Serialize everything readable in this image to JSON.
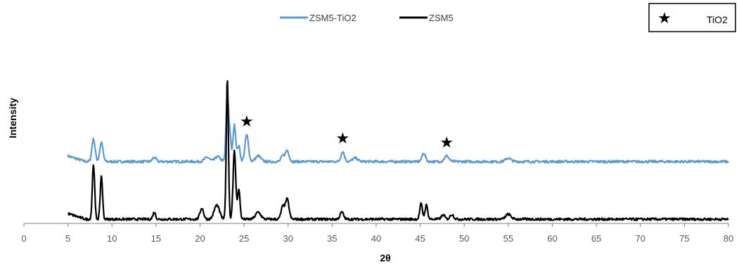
{
  "chart_data": {
    "type": "line",
    "xlabel": "2θ",
    "ylabel": "Intensity",
    "xlim": [
      0,
      80
    ],
    "x_ticks": [
      "0",
      "5",
      "10",
      "15",
      "20",
      "25",
      "30",
      "35",
      "40",
      "45",
      "50",
      "55",
      "60",
      "65",
      "70",
      "75",
      "80"
    ],
    "y_ticks_shown": false,
    "grid": false,
    "legend": {
      "placement": "top-center",
      "entries": [
        "ZSM5-TiO2",
        "ZSM5"
      ]
    },
    "marker_key": {
      "symbol": "★",
      "label": "TiO2",
      "placement": "top-right"
    },
    "colors": {
      "ZSM5-TiO2": "#5B9BD5",
      "ZSM5": "#000000"
    },
    "series": [
      {
        "name": "ZSM5-TiO2",
        "baseline": 0.82,
        "peaks": [
          [
            7.9,
            0.32,
            0.18
          ],
          [
            8.8,
            0.27,
            0.18
          ],
          [
            14.8,
            0.06,
            0.2
          ],
          [
            20.8,
            0.06,
            0.3
          ],
          [
            22.0,
            0.07,
            0.3
          ],
          [
            23.1,
            0.98,
            0.14
          ],
          [
            23.4,
            0.35,
            0.12
          ],
          [
            23.9,
            0.52,
            0.16
          ],
          [
            24.4,
            0.22,
            0.15
          ],
          [
            25.3,
            0.38,
            0.2
          ],
          [
            26.6,
            0.08,
            0.3
          ],
          [
            29.4,
            0.08,
            0.2
          ],
          [
            29.9,
            0.16,
            0.2
          ],
          [
            36.2,
            0.14,
            0.2
          ],
          [
            37.6,
            0.05,
            0.3
          ],
          [
            45.4,
            0.12,
            0.2
          ],
          [
            48.0,
            0.08,
            0.25
          ],
          [
            55.0,
            0.05,
            0.3
          ]
        ]
      },
      {
        "name": "ZSM5",
        "baseline": 0.0,
        "peaks": [
          [
            7.9,
            0.79,
            0.13
          ],
          [
            8.8,
            0.62,
            0.13
          ],
          [
            14.8,
            0.1,
            0.15
          ],
          [
            20.2,
            0.16,
            0.2
          ],
          [
            21.9,
            0.2,
            0.3
          ],
          [
            23.1,
            2.0,
            0.12
          ],
          [
            23.9,
            0.97,
            0.15
          ],
          [
            24.4,
            0.42,
            0.14
          ],
          [
            26.6,
            0.1,
            0.3
          ],
          [
            29.4,
            0.18,
            0.2
          ],
          [
            29.9,
            0.28,
            0.2
          ],
          [
            36.1,
            0.1,
            0.2
          ],
          [
            45.1,
            0.22,
            0.15
          ],
          [
            45.7,
            0.2,
            0.15
          ],
          [
            47.6,
            0.06,
            0.2
          ],
          [
            48.6,
            0.07,
            0.2
          ],
          [
            55.0,
            0.07,
            0.3
          ]
        ]
      }
    ],
    "markers": [
      {
        "x": 25.3,
        "series": "ZSM5-TiO2",
        "symbol": "★"
      },
      {
        "x": 36.2,
        "series": "ZSM5-TiO2",
        "symbol": "★"
      },
      {
        "x": 48.0,
        "series": "ZSM5-TiO2",
        "symbol": "★"
      }
    ]
  }
}
